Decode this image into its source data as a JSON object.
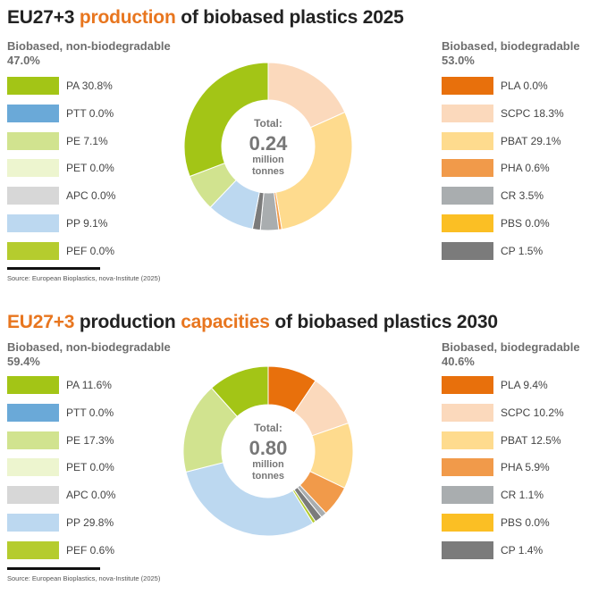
{
  "chart_data": [
    {
      "type": "pie",
      "title_parts": [
        "EU27+3 ",
        "production",
        " of biobased plastics 2025"
      ],
      "left_group": {
        "label": "Biobased, non-biodegradable",
        "share": "47.0%"
      },
      "right_group": {
        "label": "Biobased, biodegradable",
        "share": "53.0%"
      },
      "total": {
        "label": "Total:",
        "value": "0.24",
        "unit1": "million",
        "unit2": "tonnes"
      },
      "slices": [
        {
          "name": "PA",
          "value": 30.8,
          "text": "PA 30.8%",
          "color": "#a3c516",
          "side": "left"
        },
        {
          "name": "PTT",
          "value": 0.0,
          "text": "PTT 0.0%",
          "color": "#6aa9d8",
          "side": "left"
        },
        {
          "name": "PE",
          "value": 7.1,
          "text": "PE 7.1%",
          "color": "#d1e38f",
          "side": "left"
        },
        {
          "name": "PET",
          "value": 0.0,
          "text": "PET 0.0%",
          "color": "#edf5cf",
          "side": "left"
        },
        {
          "name": "APC",
          "value": 0.0,
          "text": "APC 0.0%",
          "color": "#d7d7d7",
          "side": "left"
        },
        {
          "name": "PP",
          "value": 9.1,
          "text": "PP 9.1%",
          "color": "#bcd8f0",
          "side": "left"
        },
        {
          "name": "PEF",
          "value": 0.0,
          "text": "PEF 0.0%",
          "color": "#b5cc2e",
          "side": "left"
        },
        {
          "name": "PLA",
          "value": 0.0,
          "text": "PLA 0.0%",
          "color": "#e8700c",
          "side": "right"
        },
        {
          "name": "SCPC",
          "value": 18.3,
          "text": "SCPC 18.3%",
          "color": "#fbd9bc",
          "side": "right"
        },
        {
          "name": "PBAT",
          "value": 29.1,
          "text": "PBAT 29.1%",
          "color": "#fedb8e",
          "side": "right"
        },
        {
          "name": "PHA",
          "value": 0.6,
          "text": "PHA 0.6%",
          "color": "#f19a4a",
          "side": "right"
        },
        {
          "name": "CR",
          "value": 3.5,
          "text": "CR 3.5%",
          "color": "#a9adaf",
          "side": "right"
        },
        {
          "name": "PBS",
          "value": 0.0,
          "text": "PBS 0.0%",
          "color": "#fbbf24",
          "side": "right"
        },
        {
          "name": "CP",
          "value": 1.5,
          "text": "CP 1.5%",
          "color": "#7b7b7b",
          "side": "right"
        }
      ],
      "source": "Source: European Bioplastics, nova-Institute (2025)"
    },
    {
      "type": "pie",
      "title_parts": [
        "EU27+3",
        " production ",
        "capacities",
        " of biobased plastics 2030"
      ],
      "left_group": {
        "label": "Biobased, non-biodegradable",
        "share": "59.4%"
      },
      "right_group": {
        "label": "Biobased, biodegradable",
        "share": "40.6%"
      },
      "total": {
        "label": "Total:",
        "value": "0.80",
        "unit1": "million",
        "unit2": "tonnes"
      },
      "slices": [
        {
          "name": "PA",
          "value": 11.6,
          "text": "PA 11.6%",
          "color": "#a3c516",
          "side": "left"
        },
        {
          "name": "PTT",
          "value": 0.0,
          "text": "PTT 0.0%",
          "color": "#6aa9d8",
          "side": "left"
        },
        {
          "name": "PE",
          "value": 17.3,
          "text": "PE 17.3%",
          "color": "#d1e38f",
          "side": "left"
        },
        {
          "name": "PET",
          "value": 0.0,
          "text": "PET 0.0%",
          "color": "#edf5cf",
          "side": "left"
        },
        {
          "name": "APC",
          "value": 0.0,
          "text": "APC 0.0%",
          "color": "#d7d7d7",
          "side": "left"
        },
        {
          "name": "PP",
          "value": 29.8,
          "text": "PP 29.8%",
          "color": "#bcd8f0",
          "side": "left"
        },
        {
          "name": "PEF",
          "value": 0.6,
          "text": "PEF 0.6%",
          "color": "#b5cc2e",
          "side": "left"
        },
        {
          "name": "PLA",
          "value": 9.4,
          "text": "PLA 9.4%",
          "color": "#e8700c",
          "side": "right"
        },
        {
          "name": "SCPC",
          "value": 10.2,
          "text": "SCPC 10.2%",
          "color": "#fbd9bc",
          "side": "right"
        },
        {
          "name": "PBAT",
          "value": 12.5,
          "text": "PBAT 12.5%",
          "color": "#fedb8e",
          "side": "right"
        },
        {
          "name": "PHA",
          "value": 5.9,
          "text": "PHA 5.9%",
          "color": "#f19a4a",
          "side": "right"
        },
        {
          "name": "CR",
          "value": 1.1,
          "text": "CR 1.1%",
          "color": "#a9adaf",
          "side": "right"
        },
        {
          "name": "PBS",
          "value": 0.0,
          "text": "PBS 0.0%",
          "color": "#fbbf24",
          "side": "right"
        },
        {
          "name": "CP",
          "value": 1.4,
          "text": "CP 1.4%",
          "color": "#7b7b7b",
          "side": "right"
        }
      ],
      "source": "Source: European Bioplastics, nova-Institute (2025)"
    }
  ]
}
